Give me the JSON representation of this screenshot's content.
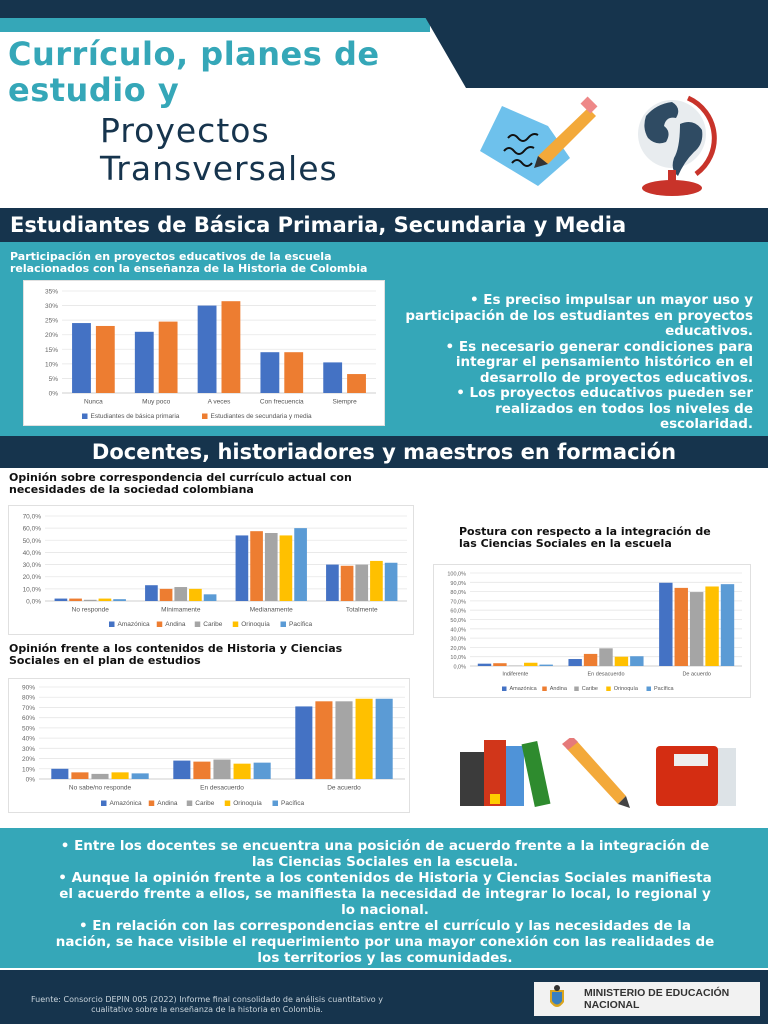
{
  "header": {
    "title_line1": "Currículo, planes de",
    "title_line2": "estudio y",
    "subtitle_line1": "Proyectos",
    "subtitle_line2": "Transversales",
    "icons": [
      "writing-paper-icon",
      "globe-icon"
    ]
  },
  "section1": {
    "band_title": "Estudiantes de Básica Primaria, Secundaria y Media",
    "chart_title_line1": "Participación en proyectos educativos de la escuela",
    "chart_title_line2": "relacionados con la enseñanza de la Historia de Colombia",
    "bullets": [
      "• Es preciso impulsar un mayor uso y participación de los estudiantes en proyectos educativos.",
      "• Es necesario generar condiciones para integrar el pensamiento histórico en el desarrollo de proyectos educativos.",
      "• Los proyectos educativos pueden ser realizados en todos los niveles de escolaridad."
    ]
  },
  "section2": {
    "band_title": "Docentes, historiadores y maestros en formación",
    "chart2_title_line1": "Opinión sobre correspondencia del currículo actual con",
    "chart2_title_line2": "necesidades de la sociedad colombiana",
    "chart3_title_line1": "Postura con respecto a la integración de",
    "chart3_title_line2": "las Ciencias Sociales en la escuela",
    "chart4_title_line1": "Opinión frente a los contenidos de Historia y Ciencias",
    "chart4_title_line2": "Sociales en el plan de estudios",
    "icons": [
      "books-icon",
      "pencil-icon",
      "folder-icon"
    ],
    "bullets": [
      "• Entre los docentes se encuentra una posición de  acuerdo frente a la integración de las Ciencias Sociales en la escuela.",
      "• Aunque la opinión frente a los contenidos de Historia y Ciencias Sociales manifiesta el acuerdo frente a ellos, se manifiesta la necesidad de integrar lo local, lo regional y lo nacional.",
      "• En relación con las correspondencias entre el currículo y las necesidades de la nación, se hace visible el requerimiento por una mayor conexión con las realidades de los territorios y las comunidades."
    ]
  },
  "footer": {
    "source_line1": "Fuente: Consorcio DEPIN 005 (2022) Informe final consolidado de análisis cuantitativo y",
    "source_line2": "cualitativo sobre la enseñanza de la historia en Colombia.",
    "ministry_line1": "MINISTERIO DE EDUCACIÓN",
    "ministry_line2": "NACIONAL"
  },
  "colors": {
    "navy": "#16344d",
    "teal": "#35a7b8",
    "series_blue": "#4472c4",
    "series_orange": "#ed7d31",
    "series_gray": "#a5a5a5",
    "series_yellow": "#ffc000",
    "series_lightblue": "#5b9bd5"
  },
  "chart_data": [
    {
      "type": "bar",
      "title": "Participación en proyectos educativos de la escuela relacionados con la enseñanza de la Historia de Colombia",
      "categories": [
        "Nunca",
        "Muy poco",
        "A veces",
        "Con frecuencia",
        "Siempre"
      ],
      "series": [
        {
          "name": "Estudiantes de básica primaria",
          "color": "#4472c4",
          "values": [
            24,
            21,
            30,
            14,
            10.5
          ]
        },
        {
          "name": "Estudiantes de secundaria y media",
          "color": "#ed7d31",
          "values": [
            23,
            24.5,
            31.5,
            14,
            6.5
          ]
        }
      ],
      "yticks": [
        "0%",
        "5%",
        "10%",
        "15%",
        "20%",
        "25%",
        "30%",
        "35%"
      ],
      "ylim": [
        0,
        35
      ],
      "xlabel": "",
      "ylabel": "",
      "grid": true,
      "legend_position": "bottom"
    },
    {
      "type": "bar",
      "title": "Opinión sobre correspondencia del currículo actual con necesidades de la sociedad colombiana",
      "categories": [
        "No responde",
        "Mínimamente",
        "Medianamente",
        "Totalmente"
      ],
      "series": [
        {
          "name": "Amazónica",
          "color": "#4472c4",
          "values": [
            2,
            13,
            54,
            30
          ]
        },
        {
          "name": "Andina",
          "color": "#ed7d31",
          "values": [
            2,
            10,
            57.5,
            29
          ]
        },
        {
          "name": "Caribe",
          "color": "#a5a5a5",
          "values": [
            1,
            11.5,
            56,
            30
          ]
        },
        {
          "name": "Orinoquía",
          "color": "#ffc000",
          "values": [
            2,
            10,
            54,
            33
          ]
        },
        {
          "name": "Pacífica",
          "color": "#5b9bd5",
          "values": [
            1.5,
            5.5,
            60,
            31.5
          ]
        }
      ],
      "yticks": [
        "0,0%",
        "10,0%",
        "20,0%",
        "30,0%",
        "40,0%",
        "50,0%",
        "60,0%",
        "70,0%"
      ],
      "ylim": [
        0,
        70
      ],
      "grid": true,
      "legend_position": "bottom"
    },
    {
      "type": "bar",
      "title": "Postura con respecto a la integración de las Ciencias Sociales en la escuela",
      "categories": [
        "Indiferente",
        "En desacuerdo",
        "De acuerdo"
      ],
      "series": [
        {
          "name": "Amazónica",
          "color": "#4472c4",
          "values": [
            2.5,
            7.5,
            89.5
          ]
        },
        {
          "name": "Andina",
          "color": "#ed7d31",
          "values": [
            3,
            13,
            84
          ]
        },
        {
          "name": "Caribe",
          "color": "#a5a5a5",
          "values": [
            0.5,
            19,
            79.5
          ]
        },
        {
          "name": "Orinoquía",
          "color": "#ffc000",
          "values": [
            3.5,
            10,
            85.5
          ]
        },
        {
          "name": "Pacífica",
          "color": "#5b9bd5",
          "values": [
            1.5,
            10.5,
            88
          ]
        }
      ],
      "yticks": [
        "0,0%",
        "10,0%",
        "20,0%",
        "30,0%",
        "40,0%",
        "50,0%",
        "60,0%",
        "70,0%",
        "80,0%",
        "90,0%",
        "100,0%"
      ],
      "ylim": [
        0,
        100
      ],
      "grid": true,
      "legend_position": "bottom"
    },
    {
      "type": "bar",
      "title": "Opinión frente a los contenidos de Historia y Ciencias Sociales en el plan de estudios",
      "categories": [
        "No sabe/no responde",
        "En desacuerdo",
        "De acuerdo"
      ],
      "series": [
        {
          "name": "Amazónica",
          "color": "#4472c4",
          "values": [
            10,
            18,
            71
          ]
        },
        {
          "name": "Andina",
          "color": "#ed7d31",
          "values": [
            6.5,
            17,
            76
          ]
        },
        {
          "name": "Caribe",
          "color": "#a5a5a5",
          "values": [
            5,
            19,
            76
          ]
        },
        {
          "name": "Orinoquía",
          "color": "#ffc000",
          "values": [
            6.5,
            15,
            78.5
          ]
        },
        {
          "name": "Pacífica",
          "color": "#5b9bd5",
          "values": [
            5.5,
            16,
            78.5
          ]
        }
      ],
      "yticks": [
        "0%",
        "10%",
        "20%",
        "30%",
        "40%",
        "50%",
        "60%",
        "70%",
        "80%",
        "90%"
      ],
      "ylim": [
        0,
        90
      ],
      "grid": true,
      "legend_position": "bottom"
    }
  ]
}
